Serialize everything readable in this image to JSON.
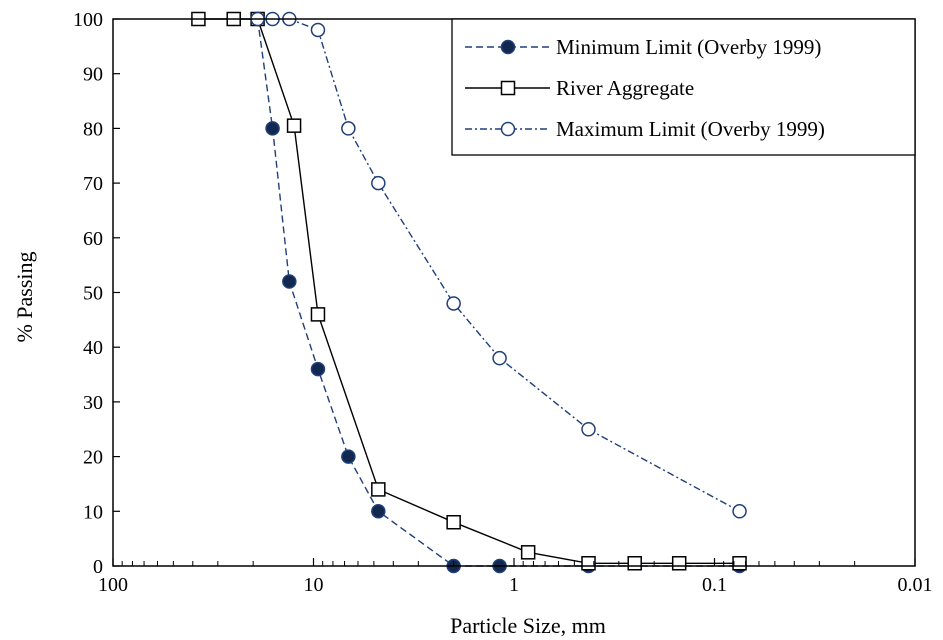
{
  "chart_data": {
    "type": "line",
    "xlabel": "Particle Size, mm",
    "ylabel": "% Passing",
    "x_scale": "log",
    "x_reversed": true,
    "xlim": [
      100,
      0.01
    ],
    "ylim": [
      0,
      100
    ],
    "x_ticks": [
      100,
      10,
      1,
      0.1,
      0.01
    ],
    "x_tick_labels": [
      "100",
      "10",
      "1",
      "0.1",
      "0.01"
    ],
    "y_ticks": [
      0,
      10,
      20,
      30,
      40,
      50,
      60,
      70,
      80,
      90,
      100
    ],
    "y_tick_labels": [
      "0",
      "10",
      "20",
      "30",
      "40",
      "50",
      "60",
      "70",
      "80",
      "90",
      "100"
    ],
    "grid": false,
    "legend_position": "top-right",
    "series": [
      {
        "name": "Minimum Limit (Overby 1999)",
        "color": "#1f3f7a",
        "line_style": "dashed",
        "marker": "filled-circle",
        "marker_fill": "#13284f",
        "x": [
          19,
          16,
          13.2,
          9.5,
          6.7,
          4.75,
          2,
          1.18,
          0.425,
          0.075
        ],
        "y": [
          100,
          80,
          52,
          36,
          20,
          10,
          0,
          0,
          0,
          0
        ]
      },
      {
        "name": "River Aggregate",
        "color": "#000000",
        "line_style": "solid",
        "marker": "open-square",
        "marker_fill": "#ffffff",
        "x": [
          37.5,
          25,
          19,
          12.5,
          9.5,
          4.75,
          2,
          0.85,
          0.425,
          0.25,
          0.15,
          0.075
        ],
        "y": [
          100,
          100,
          100,
          80.5,
          46,
          14,
          8,
          2.5,
          0.5,
          0.5,
          0.5,
          0.5
        ]
      },
      {
        "name": "Maximum Limit (Overby 1999)",
        "color": "#1f3f7a",
        "line_style": "dash-dot",
        "marker": "open-circle",
        "marker_fill": "#ffffff",
        "x": [
          19,
          16,
          13.2,
          9.5,
          6.7,
          4.75,
          2,
          1.18,
          0.425,
          0.075
        ],
        "y": [
          100,
          100,
          100,
          98,
          80,
          70,
          48,
          38,
          25,
          10
        ]
      }
    ]
  }
}
